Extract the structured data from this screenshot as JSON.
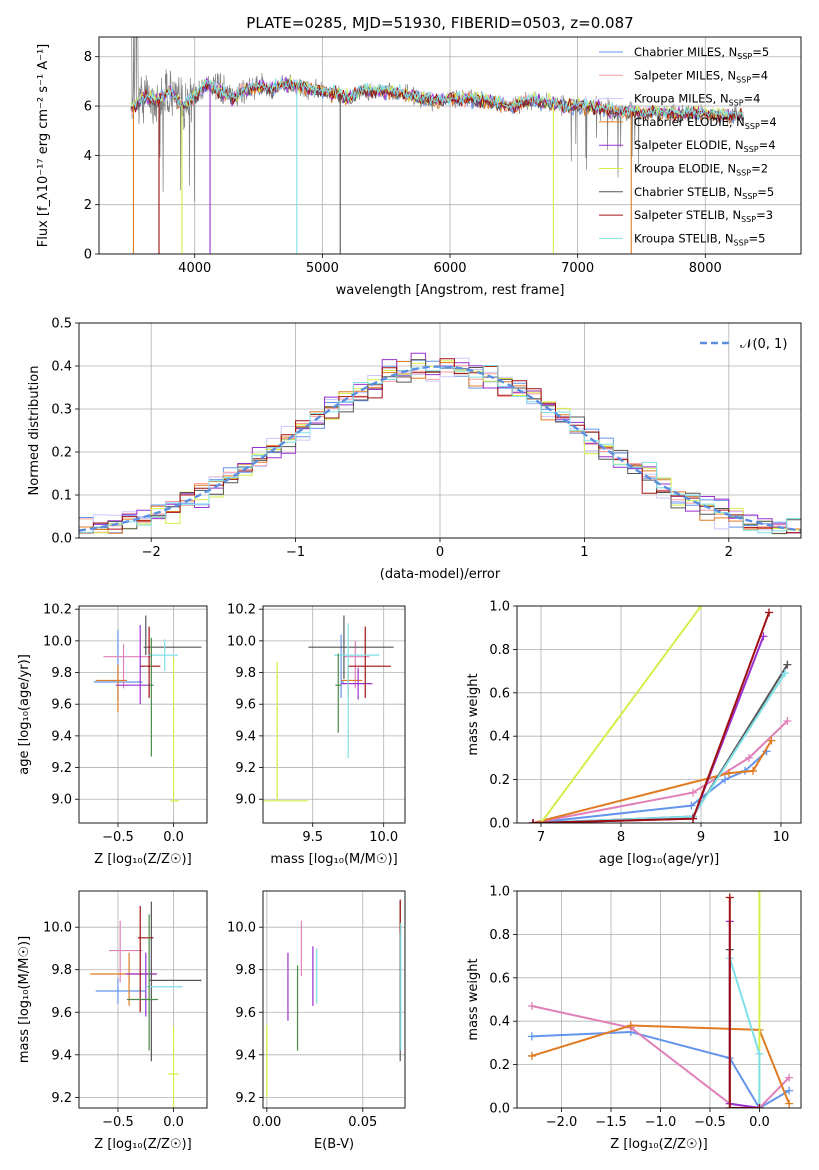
{
  "colors": {
    "chabrier_miles": "#6495ed",
    "salpeter_miles": "#ff9b9b",
    "kroupa_miles": "#c8c8ff",
    "chabrier_elodie": "#e07b22",
    "salpeter_elodie": "#9a32cd",
    "kroupa_elodie": "#d6ee4a",
    "chabrier_stelib": "#555555",
    "salpeter_stelib": "#a01010",
    "kroupa_stelib": "#7fe0e8",
    "gauss": "#5b8ee0",
    "spectrum": "#808080",
    "pink": "#e080b8",
    "green": "#4a8a4a"
  },
  "chart_data": [
    {
      "id": "spectrum",
      "type": "line",
      "title": "PLATE=0285, MJD=51930, FIBERID=0503, z=0.087",
      "xlabel": "wavelength [Angstrom, rest frame]",
      "ylabel": "Flux [f_λ10⁻¹⁷ erg cm⁻² s⁻¹ A⁻¹]",
      "xlim": [
        3250,
        8750
      ],
      "ylim": [
        0,
        8.8
      ],
      "xticks": [
        4000,
        5000,
        6000,
        7000,
        8000
      ],
      "yticks": [
        0,
        2,
        4,
        6,
        8
      ],
      "legend_position": "top-right",
      "legend": [
        {
          "label": "Chabrier MILES, N",
          "sub": "SSP",
          "suffix": "=5",
          "color": "#6495ed"
        },
        {
          "label": "Salpeter MILES, N",
          "sub": "SSP",
          "suffix": "=4",
          "color": "#ff9b9b"
        },
        {
          "label": "Kroupa MILES, N",
          "sub": "SSP",
          "suffix": "=4",
          "color": "#c8c8ff"
        },
        {
          "label": "Chabrier ELODIE, N",
          "sub": "SSP",
          "suffix": "=4",
          "color": "#e07b22"
        },
        {
          "label": "Salpeter ELODIE, N",
          "sub": "SSP",
          "suffix": "=4",
          "color": "#9a32cd"
        },
        {
          "label": "Kroupa ELODIE, N",
          "sub": "SSP",
          "suffix": "=2",
          "color": "#d6ee4a"
        },
        {
          "label": "Chabrier STELIB, N",
          "sub": "SSP",
          "suffix": "=5",
          "color": "#555555"
        },
        {
          "label": "Salpeter STELIB, N",
          "sub": "SSP",
          "suffix": "=3",
          "color": "#a01010"
        },
        {
          "label": "Kroupa STELIB, N",
          "sub": "SSP",
          "suffix": "=5",
          "color": "#7fe0e8"
        }
      ],
      "continuum": {
        "x": [
          3500,
          3600,
          3700,
          3800,
          3900,
          4000,
          4100,
          4200,
          4300,
          4400,
          4500,
          4600,
          4700,
          4800,
          4900,
          5000,
          5100,
          5200,
          5300,
          5400,
          5500,
          5600,
          5700,
          5800,
          5900,
          6000,
          6100,
          6200,
          6300,
          6400,
          6500,
          6600,
          6700,
          6800,
          6900,
          7000,
          7100,
          7200,
          7300,
          7400,
          7500,
          7600,
          7700,
          7800,
          7900,
          8000,
          8100,
          8200,
          8300
        ],
        "y": [
          5.9,
          6.4,
          6.2,
          6.6,
          6.0,
          6.4,
          6.9,
          6.6,
          6.3,
          6.7,
          6.8,
          6.7,
          6.9,
          6.8,
          6.7,
          6.6,
          6.5,
          6.3,
          6.6,
          6.6,
          6.6,
          6.5,
          6.4,
          6.3,
          6.2,
          6.3,
          6.3,
          6.3,
          6.2,
          6.1,
          6.0,
          6.2,
          6.2,
          6.1,
          6.0,
          6.0,
          6.0,
          5.9,
          5.8,
          5.8,
          5.7,
          5.8,
          5.7,
          5.7,
          5.7,
          5.7,
          5.6,
          5.6,
          5.6
        ]
      },
      "dropouts": [
        3520,
        3720,
        3900,
        4120,
        4800,
        5140,
        6810,
        7420
      ]
    },
    {
      "id": "residuals",
      "type": "histogram",
      "xlabel": "(data-model)/error",
      "ylabel": "Normed distribution",
      "xlim": [
        -2.5,
        2.5
      ],
      "ylim": [
        0,
        0.5
      ],
      "xticks": [
        -2,
        -1,
        0,
        1,
        2
      ],
      "yticks": [
        0.0,
        0.1,
        0.2,
        0.3,
        0.4,
        0.5
      ],
      "legend": [
        {
          "label": "𝒩(0, 1)",
          "color": "#5b8ee0",
          "style": "dashed"
        }
      ],
      "legend_position": "top-right",
      "bin_width": 0.1,
      "n_series": 9
    },
    {
      "id": "age-Z",
      "type": "errorbar",
      "xlabel": "Z [log₁₀(Z/Z☉)]",
      "ylabel": "age  [log₁₀(age/yr)]",
      "xlim": [
        -0.85,
        0.3
      ],
      "ylim": [
        8.85,
        10.22
      ],
      "xticks": [
        -0.5,
        0.0
      ],
      "yticks": [
        9.0,
        9.2,
        9.4,
        9.6,
        9.8,
        10.0,
        10.2
      ],
      "points": [
        {
          "x": -0.5,
          "y": 9.74,
          "xerr": [
            0.22,
            0.22
          ],
          "yerr": [
            0.12,
            0.33
          ],
          "color": "#6495ed"
        },
        {
          "x": -0.45,
          "y": 9.9,
          "xerr": [
            0.18,
            0.25
          ],
          "yerr": [
            0.2,
            0.08
          ],
          "color": "#e080b8"
        },
        {
          "x": -0.5,
          "y": 9.75,
          "xerr": [
            0.2,
            0.08
          ],
          "yerr": [
            0.2,
            0.1
          ],
          "color": "#e07b22"
        },
        {
          "x": -0.3,
          "y": 9.72,
          "xerr": [
            0.22,
            0.1
          ],
          "yerr": [
            0.12,
            0.38
          ],
          "color": "#9a32cd"
        },
        {
          "x": 0.0,
          "y": 8.99,
          "xerr": [
            0.03,
            0.05
          ],
          "yerr": [
            0.0,
            0.9
          ],
          "color": "#d6ee4a"
        },
        {
          "x": -0.25,
          "y": 9.96,
          "xerr": [
            0.02,
            0.5
          ],
          "yerr": [
            0.05,
            0.2
          ],
          "color": "#555555"
        },
        {
          "x": -0.22,
          "y": 9.84,
          "xerr": [
            0.08,
            0.1
          ],
          "yerr": [
            0.2,
            0.25
          ],
          "color": "#a01010"
        },
        {
          "x": -0.08,
          "y": 9.91,
          "xerr": [
            0.15,
            0.12
          ],
          "yerr": [
            0.1,
            0.1
          ],
          "color": "#7fe0e8"
        },
        {
          "x": -0.2,
          "y": 9.72,
          "xerr": [
            0.02,
            0.02
          ],
          "yerr": [
            0.45,
            0.3
          ],
          "color": "#4a8a4a"
        }
      ]
    },
    {
      "id": "age-mass",
      "type": "errorbar",
      "xlabel": "mass [log₁₀(M/M☉)]",
      "ylabel": "",
      "xlim": [
        9.15,
        10.15
      ],
      "ylim": [
        8.85,
        10.22
      ],
      "xticks": [
        9.5,
        10.0
      ],
      "yticks": [
        9.0,
        9.2,
        9.4,
        9.6,
        9.8,
        10.0,
        10.2
      ],
      "points": [
        {
          "x": 9.7,
          "y": 9.74,
          "xerr": [
            0.0,
            0.02
          ],
          "yerr": [
            0.1,
            0.3
          ],
          "color": "#6495ed"
        },
        {
          "x": 9.8,
          "y": 9.9,
          "xerr": [
            0.08,
            0.1
          ],
          "yerr": [
            0.2,
            0.1
          ],
          "color": "#e080b8"
        },
        {
          "x": 9.75,
          "y": 9.75,
          "xerr": [
            0.05,
            0.1
          ],
          "yerr": [
            0.1,
            0.1
          ],
          "color": "#e07b22"
        },
        {
          "x": 9.82,
          "y": 9.73,
          "xerr": [
            0.12,
            0.1
          ],
          "yerr": [
            0.1,
            0.1
          ],
          "color": "#9a32cd"
        },
        {
          "x": 9.25,
          "y": 8.99,
          "xerr": [
            0.1,
            0.22
          ],
          "yerr": [
            0.0,
            0.88
          ],
          "color": "#d6ee4a"
        },
        {
          "x": 9.72,
          "y": 9.96,
          "xerr": [
            0.25,
            0.35
          ],
          "yerr": [
            0.2,
            0.2
          ],
          "color": "#555555"
        },
        {
          "x": 9.87,
          "y": 9.84,
          "xerr": [
            0.12,
            0.18
          ],
          "yerr": [
            0.2,
            0.25
          ],
          "color": "#a01010"
        },
        {
          "x": 9.75,
          "y": 9.91,
          "xerr": [
            0.1,
            0.22
          ],
          "yerr": [
            0.65,
            0.2
          ],
          "color": "#7fe0e8"
        },
        {
          "x": 9.68,
          "y": 9.72,
          "xerr": [
            0.02,
            0.02
          ],
          "yerr": [
            0.3,
            0.2
          ],
          "color": "#4a8a4a"
        }
      ]
    },
    {
      "id": "weight-age",
      "type": "line",
      "xlabel": "age  [log₁₀(age/yr)]",
      "ylabel": "mass weight",
      "xlim": [
        6.7,
        10.25
      ],
      "ylim": [
        0,
        1
      ],
      "xticks": [
        7,
        8,
        9,
        10
      ],
      "yticks": [
        0.0,
        0.2,
        0.4,
        0.6,
        0.8,
        1.0
      ],
      "series": [
        {
          "color": "#6495ed",
          "x": [
            6.9,
            8.88,
            9.3,
            9.55,
            9.82
          ],
          "y": [
            0.0,
            0.08,
            0.2,
            0.24,
            0.33
          ]
        },
        {
          "color": "#e080b8",
          "x": [
            6.9,
            8.9,
            9.6,
            10.08
          ],
          "y": [
            0.0,
            0.14,
            0.3,
            0.47
          ]
        },
        {
          "color": "#e07b22",
          "x": [
            6.9,
            9.35,
            9.65,
            9.88
          ],
          "y": [
            0.0,
            0.23,
            0.24,
            0.38
          ]
        },
        {
          "color": "#d6ee4a",
          "x": [
            7.0,
            9.0
          ],
          "y": [
            0.0,
            1.0
          ]
        },
        {
          "color": "#555555",
          "x": [
            6.9,
            8.9,
            10.08
          ],
          "y": [
            0.0,
            0.03,
            0.73
          ]
        },
        {
          "color": "#7fe0e8",
          "x": [
            6.9,
            8.9,
            10.05
          ],
          "y": [
            0.0,
            0.03,
            0.69
          ]
        },
        {
          "color": "#9a32cd",
          "x": [
            6.9,
            8.9,
            9.78
          ],
          "y": [
            0.0,
            0.02,
            0.86
          ]
        },
        {
          "color": "#a01010",
          "x": [
            6.9,
            8.9,
            9.85
          ],
          "y": [
            0.0,
            0.02,
            0.97
          ]
        }
      ]
    },
    {
      "id": "mass-Z",
      "type": "errorbar",
      "xlabel": "Z [log₁₀(Z/Z☉)]",
      "ylabel": "mass [log₁₀(M/M☉)]",
      "xlim": [
        -0.85,
        0.3
      ],
      "ylim": [
        9.15,
        10.17
      ],
      "xticks": [
        -0.5,
        0.0
      ],
      "yticks": [
        9.2,
        9.4,
        9.6,
        9.8,
        10.0
      ],
      "points": [
        {
          "x": -0.5,
          "y": 9.7,
          "xerr": [
            0.2,
            0.25
          ],
          "yerr": [
            0.06,
            0.06
          ],
          "color": "#6495ed"
        },
        {
          "x": -0.48,
          "y": 9.89,
          "xerr": [
            0.1,
            0.2
          ],
          "yerr": [
            0.15,
            0.14
          ],
          "color": "#e080b8"
        },
        {
          "x": -0.4,
          "y": 9.78,
          "xerr": [
            0.35,
            0.25
          ],
          "yerr": [
            0.15,
            0.1
          ],
          "color": "#e07b22"
        },
        {
          "x": -0.25,
          "y": 9.78,
          "xerr": [
            0.18,
            0.1
          ],
          "yerr": [
            0.2,
            0.1
          ],
          "color": "#9a32cd"
        },
        {
          "x": 0.0,
          "y": 9.31,
          "xerr": [
            0.05,
            0.05
          ],
          "yerr": [
            0.2,
            0.22
          ],
          "color": "#d6ee4a"
        },
        {
          "x": -0.2,
          "y": 9.75,
          "xerr": [
            0.02,
            0.45
          ],
          "yerr": [
            0.38,
            0.37
          ],
          "color": "#555555"
        },
        {
          "x": -0.3,
          "y": 9.95,
          "xerr": [
            0.02,
            0.12
          ],
          "yerr": [
            0.35,
            0.15
          ],
          "color": "#a01010"
        },
        {
          "x": -0.05,
          "y": 9.72,
          "xerr": [
            0.2,
            0.13
          ],
          "yerr": [
            0.0,
            0.0
          ],
          "color": "#7fe0e8"
        },
        {
          "x": -0.22,
          "y": 9.66,
          "xerr": [
            0.2,
            0.08
          ],
          "yerr": [
            0.24,
            0.4
          ],
          "color": "#4a8a4a"
        }
      ]
    },
    {
      "id": "mass-ebv",
      "type": "errorbar",
      "xlabel": "E(B-V)",
      "ylabel": "",
      "xlim": [
        -0.002,
        0.072
      ],
      "ylim": [
        9.15,
        10.17
      ],
      "xticks": [
        0.0,
        0.05
      ],
      "yticks": [
        9.2,
        9.4,
        9.6,
        9.8,
        10.0
      ],
      "points": [
        {
          "x": 0.0,
          "y": 9.37,
          "xerr": [
            0,
            0
          ],
          "yerr": [
            0.17,
            0.17
          ],
          "color": "#d6ee4a"
        },
        {
          "x": 0.011,
          "y": 9.72,
          "xerr": [
            0,
            0
          ],
          "yerr": [
            0.16,
            0.16
          ],
          "color": "#9a32cd"
        },
        {
          "x": 0.016,
          "y": 9.62,
          "xerr": [
            0,
            0
          ],
          "yerr": [
            0.2,
            0.2
          ],
          "color": "#4a8a4a"
        },
        {
          "x": 0.018,
          "y": 9.9,
          "xerr": [
            0,
            0
          ],
          "yerr": [
            0.13,
            0.13
          ],
          "color": "#e080b8"
        },
        {
          "x": 0.024,
          "y": 9.77,
          "xerr": [
            0,
            0
          ],
          "yerr": [
            0.14,
            0.14
          ],
          "color": "#9a32cd"
        },
        {
          "x": 0.026,
          "y": 9.77,
          "xerr": [
            0,
            0
          ],
          "yerr": [
            0.13,
            0.13
          ],
          "color": "#7fe0e8"
        },
        {
          "x": 0.0695,
          "y": 9.75,
          "xerr": [
            0,
            0
          ],
          "yerr": [
            0.38,
            0.37
          ],
          "color": "#555555"
        },
        {
          "x": 0.0695,
          "y": 10.05,
          "xerr": [
            0,
            0
          ],
          "yerr": [
            0.08,
            0.08
          ],
          "color": "#a01010"
        },
        {
          "x": 0.0698,
          "y": 9.72,
          "xerr": [
            0,
            0
          ],
          "yerr": [
            0.3,
            0.3
          ],
          "color": "#7fe0e8"
        }
      ]
    },
    {
      "id": "weight-Z",
      "type": "line",
      "xlabel": "Z [log₁₀(Z/Z☉)]",
      "ylabel": "mass weight",
      "xlim": [
        -2.45,
        0.42
      ],
      "ylim": [
        0,
        1
      ],
      "xticks": [
        -2.0,
        -1.5,
        -1.0,
        -0.5,
        0.0
      ],
      "yticks": [
        0.0,
        0.2,
        0.4,
        0.6,
        0.8,
        1.0
      ],
      "series": [
        {
          "color": "#6495ed",
          "x": [
            -2.3,
            -1.3,
            -0.3,
            0.0,
            0.3
          ],
          "y": [
            0.33,
            0.35,
            0.23,
            0.0,
            0.08
          ]
        },
        {
          "color": "#e080b8",
          "x": [
            -2.3,
            -1.3,
            -0.3,
            0.0,
            0.3
          ],
          "y": [
            0.47,
            0.37,
            0.02,
            0.0,
            0.14
          ]
        },
        {
          "color": "#e07b22",
          "x": [
            -2.3,
            -1.3,
            0.0,
            0.3
          ],
          "y": [
            0.24,
            0.38,
            0.36,
            0.02
          ]
        },
        {
          "color": "#d6ee4a",
          "x": [
            0.0,
            0.0
          ],
          "y": [
            0.0,
            1.0
          ]
        },
        {
          "color": "#555555",
          "x": [
            -0.3,
            -0.3,
            0.0
          ],
          "y": [
            0.73,
            0.0,
            0.0
          ]
        },
        {
          "color": "#7fe0e8",
          "x": [
            -0.3,
            0.0,
            0.0
          ],
          "y": [
            0.69,
            0.25,
            0.0
          ]
        },
        {
          "color": "#9a32cd",
          "x": [
            -0.3,
            -0.3,
            0.0
          ],
          "y": [
            0.86,
            0.02,
            0.0
          ]
        },
        {
          "color": "#a01010",
          "x": [
            -0.3,
            -0.3,
            0.0
          ],
          "y": [
            0.97,
            0.0,
            0.0
          ]
        }
      ]
    }
  ]
}
